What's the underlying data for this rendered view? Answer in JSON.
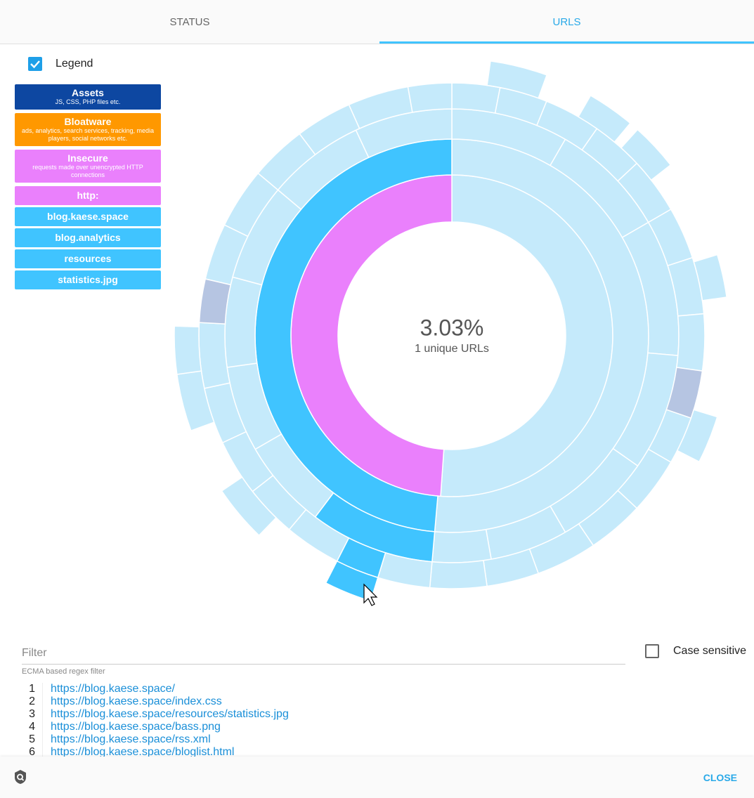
{
  "tabs": [
    "STATUS",
    "URLS"
  ],
  "legend": {
    "label": "Legend",
    "items": [
      {
        "title": "Assets",
        "subtitle": "JS, CSS, PHP files etc."
      },
      {
        "title": "Bloatware",
        "subtitle": "ads, analytics, search services, tracking, media players, social networks etc."
      },
      {
        "title": "Insecure",
        "subtitle": "requests made over unencrypted HTTP connections"
      },
      {
        "title": "http:"
      },
      {
        "title": "blog.kaese.space"
      },
      {
        "title": "blog.analytics"
      },
      {
        "title": "resources"
      },
      {
        "title": "statistics.jpg"
      }
    ]
  },
  "center": {
    "value": "3.03%",
    "label": "1 unique URLs"
  },
  "filter": {
    "placeholder": "Filter",
    "hint": "ECMA based regex filter",
    "case_sensitive": "Case sensitive"
  },
  "urls": [
    {
      "index": 1,
      "url": "https://blog.kaese.space/"
    },
    {
      "index": 2,
      "url": "https://blog.kaese.space/index.css"
    },
    {
      "index": 3,
      "url": "https://blog.kaese.space/resources/statistics.jpg"
    },
    {
      "index": 4,
      "url": "https://blog.kaese.space/bass.png"
    },
    {
      "index": 5,
      "url": "https://blog.kaese.space/rss.xml"
    },
    {
      "index": 6,
      "url": "https://blog.kaese.space/bloglist.html"
    }
  ],
  "footer": {
    "close": "CLOSE"
  }
}
